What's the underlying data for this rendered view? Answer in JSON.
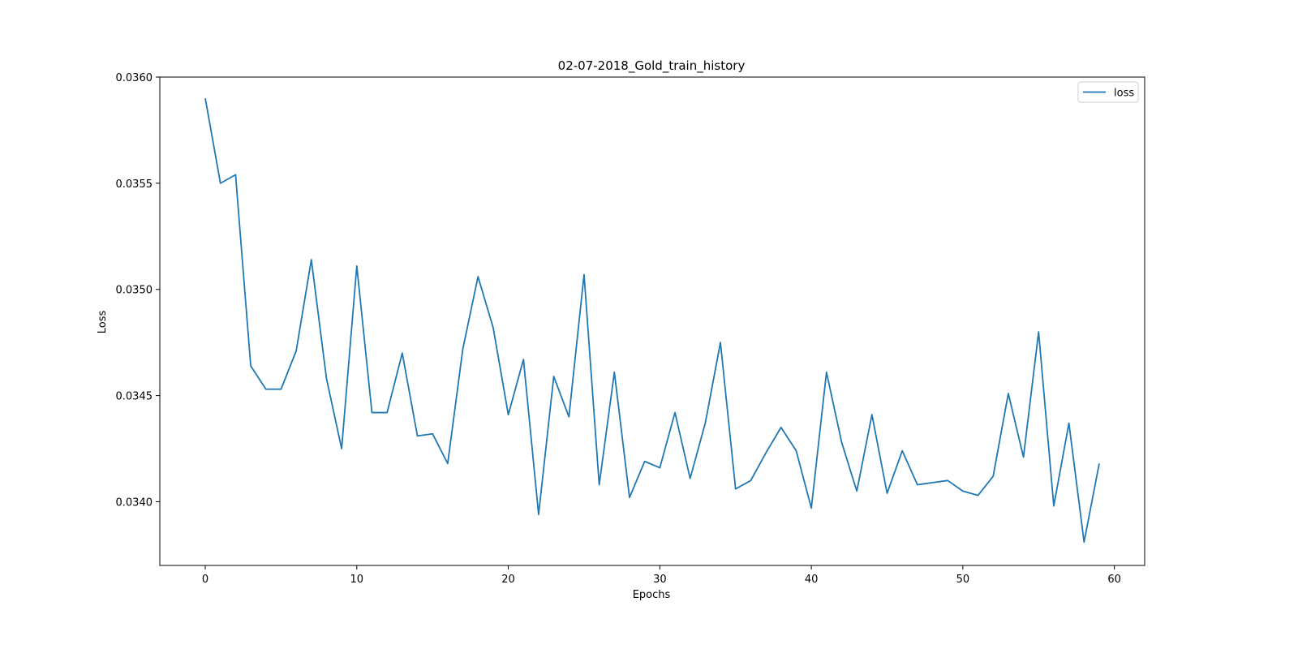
{
  "chart_data": {
    "type": "line",
    "title": "02-07-2018_Gold_train_history",
    "xlabel": "Epochs",
    "ylabel": "Loss",
    "xlim": [
      -3,
      62
    ],
    "ylim": [
      0.0337,
      0.036
    ],
    "xticks": [
      0,
      10,
      20,
      30,
      40,
      50,
      60
    ],
    "xtick_labels": [
      "0",
      "10",
      "20",
      "30",
      "40",
      "50",
      "60"
    ],
    "yticks": [
      0.034,
      0.0345,
      0.035,
      0.0355,
      0.036
    ],
    "ytick_labels": [
      "0.0340",
      "0.0345",
      "0.0350",
      "0.0355",
      "0.0360"
    ],
    "grid": false,
    "legend_position": "top-right",
    "series": [
      {
        "name": "loss",
        "color": "#1f77b4",
        "x": [
          0,
          1,
          2,
          3,
          4,
          5,
          6,
          7,
          8,
          9,
          10,
          11,
          12,
          13,
          14,
          15,
          16,
          17,
          18,
          19,
          20,
          21,
          22,
          23,
          24,
          25,
          26,
          27,
          28,
          29,
          30,
          31,
          32,
          33,
          34,
          35,
          36,
          37,
          38,
          39,
          40,
          41,
          42,
          43,
          44,
          45,
          46,
          47,
          48,
          49,
          50,
          51,
          52,
          53,
          54,
          55,
          56,
          57,
          58,
          59
        ],
        "values": [
          0.0359,
          0.0355,
          0.03554,
          0.03464,
          0.03453,
          0.03453,
          0.03471,
          0.03514,
          0.03458,
          0.03425,
          0.03511,
          0.03442,
          0.03442,
          0.0347,
          0.03431,
          0.03432,
          0.03418,
          0.03472,
          0.03506,
          0.03482,
          0.03441,
          0.03467,
          0.03394,
          0.03459,
          0.0344,
          0.03507,
          0.03408,
          0.03461,
          0.03402,
          0.03419,
          0.03416,
          0.03442,
          0.03411,
          0.03437,
          0.03475,
          0.03406,
          0.0341,
          0.03423,
          0.03435,
          0.03424,
          0.03397,
          0.03461,
          0.03428,
          0.03405,
          0.03441,
          0.03404,
          0.03424,
          0.03408,
          0.03409,
          0.0341,
          0.03405,
          0.03403,
          0.03412,
          0.03451,
          0.03421,
          0.0348,
          0.03398,
          0.03437,
          0.03381,
          0.03418
        ]
      }
    ]
  }
}
